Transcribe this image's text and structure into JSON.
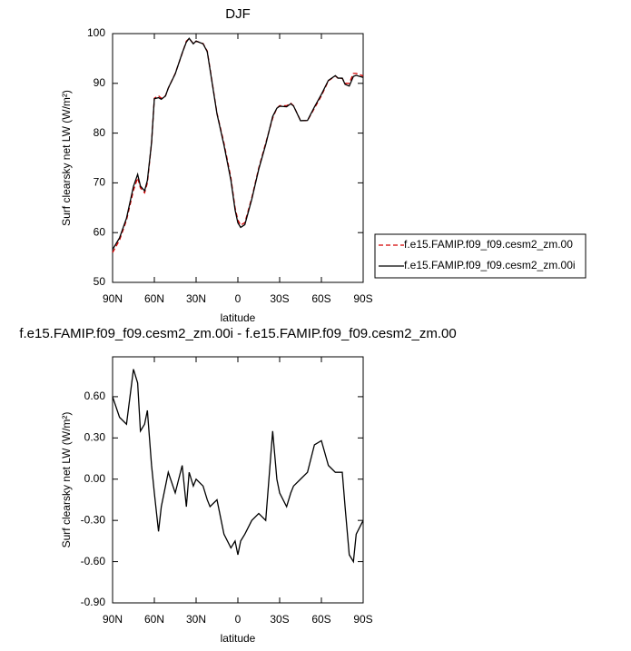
{
  "chart_data": [
    {
      "type": "line",
      "title": "DJF",
      "xlabel": "latitude",
      "ylabel": "Surf clearsky net LW (W/m²)",
      "x": [
        90,
        85,
        80,
        75,
        72,
        70,
        67,
        65,
        62,
        60,
        57,
        55,
        52,
        50,
        45,
        40,
        37,
        35,
        32,
        30,
        25,
        22,
        20,
        15,
        10,
        5,
        2,
        0,
        -2,
        -5,
        -10,
        -15,
        -20,
        -25,
        -28,
        -30,
        -35,
        -38,
        -40,
        -45,
        -50,
        -55,
        -60,
        -65,
        -70,
        -72,
        -75,
        -77,
        -80,
        -83,
        -85,
        -90
      ],
      "series": [
        {
          "name": "f.e15.FAMIP.f09_f09.cesm2_zm.00",
          "color": "#d40000",
          "linestyle": "dashed",
          "values": [
            56,
            58.5,
            62.5,
            68.5,
            71,
            69,
            68,
            70,
            78,
            87,
            87.5,
            87,
            87.5,
            89,
            92,
            96,
            98.5,
            99,
            98,
            98.5,
            98,
            96.5,
            93,
            84,
            78,
            71,
            65,
            62.5,
            61.5,
            62,
            67,
            73,
            78,
            83,
            85,
            85.5,
            85.5,
            86,
            85.5,
            82.5,
            82.5,
            85,
            87.5,
            90.5,
            91.5,
            91,
            91,
            90,
            90,
            92,
            92,
            91.5
          ]
        },
        {
          "name": "f.e15.FAMIP.f09_f09.cesm2_zm.00i",
          "color": "#000000",
          "linestyle": "solid",
          "values": [
            56.6,
            58.95,
            62.9,
            69.3,
            71.7,
            69.35,
            68.4,
            70.5,
            78.1,
            86.9,
            87.12,
            86.8,
            87.45,
            89.05,
            91.9,
            96.1,
            98.3,
            99.05,
            97.95,
            98.5,
            97.95,
            96.35,
            92.8,
            83.85,
            77.6,
            70.5,
            64.55,
            61.95,
            61.05,
            61.6,
            66.7,
            72.75,
            77.7,
            83.35,
            85,
            85.4,
            85.3,
            85.9,
            85.45,
            82.5,
            82.55,
            85.25,
            87.78,
            90.6,
            91.55,
            91.05,
            91.05,
            89.8,
            89.45,
            91.4,
            91.6,
            91.2
          ]
        }
      ],
      "xlim": [
        90,
        -90
      ],
      "xticks": [
        {
          "value": 90,
          "label": "90N"
        },
        {
          "value": 60,
          "label": "60N"
        },
        {
          "value": 30,
          "label": "30N"
        },
        0,
        {
          "value": -30,
          "label": "30S"
        },
        {
          "value": -60,
          "label": "60S"
        },
        {
          "value": -90,
          "label": "90S"
        }
      ],
      "ylim": [
        50,
        100
      ],
      "yticks": [
        50,
        60,
        70,
        80,
        90,
        100
      ],
      "legend": "right"
    },
    {
      "type": "line",
      "title": "f.e15.FAMIP.f09_f09.cesm2_zm.00i - f.e15.FAMIP.f09_f09.cesm2_zm.00",
      "xlabel": "latitude",
      "ylabel": "Surf clearsky net LW (W/m²)",
      "x": [
        90,
        85,
        80,
        75,
        72,
        70,
        67,
        65,
        62,
        60,
        57,
        55,
        52,
        50,
        45,
        40,
        37,
        35,
        32,
        30,
        25,
        22,
        20,
        15,
        10,
        5,
        2,
        0,
        -2,
        -5,
        -10,
        -15,
        -20,
        -25,
        -28,
        -30,
        -35,
        -38,
        -40,
        -45,
        -50,
        -55,
        -60,
        -65,
        -70,
        -72,
        -75,
        -77,
        -80,
        -83,
        -85,
        -90
      ],
      "values": [
        0.6,
        0.45,
        0.4,
        0.8,
        0.7,
        0.35,
        0.4,
        0.5,
        0.1,
        -0.1,
        -0.38,
        -0.2,
        -0.05,
        0.05,
        -0.1,
        0.1,
        -0.2,
        0.05,
        -0.05,
        0,
        -0.05,
        -0.15,
        -0.2,
        -0.15,
        -0.4,
        -0.5,
        -0.45,
        -0.55,
        -0.45,
        -0.4,
        -0.3,
        -0.25,
        -0.3,
        0.35,
        0,
        -0.1,
        -0.2,
        -0.1,
        -0.05,
        0,
        0.05,
        0.25,
        0.28,
        0.1,
        0.05,
        0.05,
        0.05,
        -0.2,
        -0.55,
        -0.6,
        -0.4,
        -0.3
      ],
      "color": "#000000",
      "linestyle": "solid",
      "xlim": [
        90,
        -90
      ],
      "xticks": [
        {
          "value": 90,
          "label": "90N"
        },
        {
          "value": 60,
          "label": "60N"
        },
        {
          "value": 30,
          "label": "30N"
        },
        0,
        {
          "value": -30,
          "label": "30S"
        },
        {
          "value": -60,
          "label": "60S"
        },
        {
          "value": -90,
          "label": "90S"
        }
      ],
      "ylim": [
        -0.9,
        0.89
      ],
      "yticks": [
        {
          "value": -0.9,
          "label": "-0.90"
        },
        {
          "value": -0.6,
          "label": "-0.60"
        },
        {
          "value": -0.3,
          "label": "-0.30"
        },
        {
          "value": 0,
          "label": "0.00"
        },
        {
          "value": 0.3,
          "label": "0.30"
        },
        {
          "value": 0.6,
          "label": "0.60"
        }
      ]
    }
  ]
}
